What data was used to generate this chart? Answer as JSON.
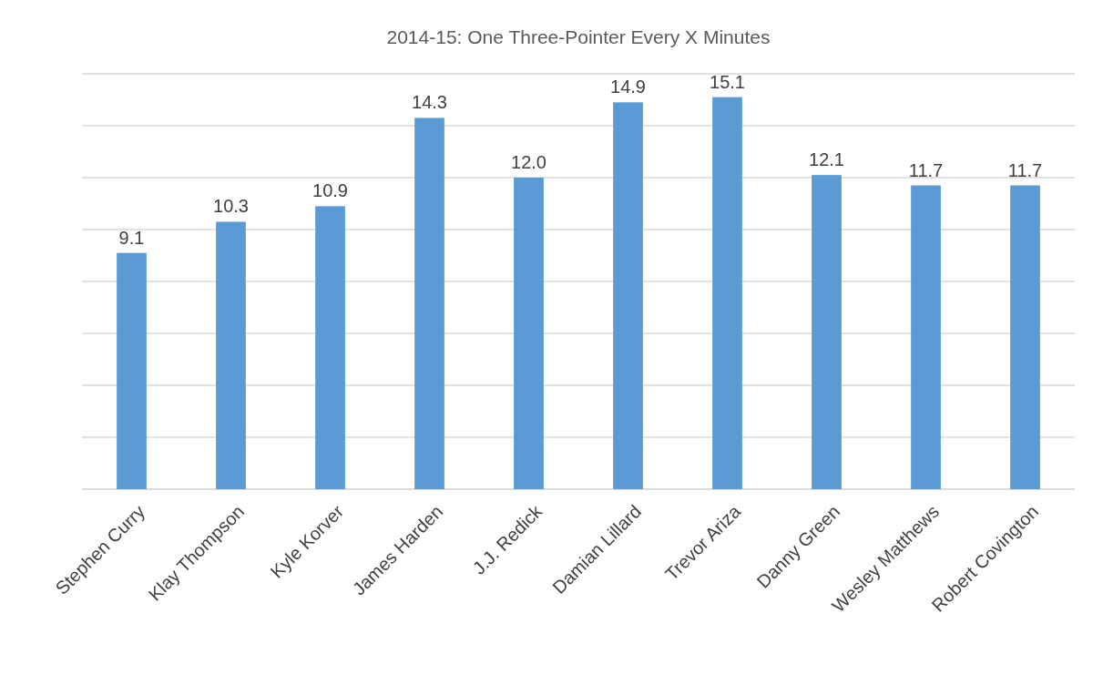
{
  "chart_data": {
    "type": "bar",
    "title": "2014-15: One Three-Pointer Every X Minutes",
    "categories": [
      "Stephen Curry",
      "Klay Thompson",
      "Kyle Korver",
      "James Harden",
      "J.J. Redick",
      "Damian Lillard",
      "Trevor Ariza",
      "Danny Green",
      "Wesley Matthews",
      "Robert Covington"
    ],
    "values": [
      9.1,
      10.3,
      10.9,
      14.3,
      12.0,
      14.9,
      15.1,
      12.1,
      11.7,
      11.7
    ],
    "value_labels": [
      "9.1",
      "10.3",
      "10.9",
      "14.3",
      "12.0",
      "14.9",
      "15.1",
      "12.1",
      "11.7",
      "11.7"
    ],
    "color": "#5b9bd5",
    "ylim": [
      0,
      16
    ],
    "yticks": [
      {
        "value": 0,
        "label": null
      },
      {
        "value": 2,
        "label": null
      },
      {
        "value": 4,
        "label": null
      },
      {
        "value": 6,
        "label": null
      },
      {
        "value": 8,
        "label": null
      },
      {
        "value": 10,
        "label": null
      },
      {
        "value": 12,
        "label": null
      },
      {
        "value": 14,
        "label": null
      },
      {
        "value": 16,
        "label": null
      }
    ],
    "grid": "y",
    "tick_labels": "x"
  }
}
